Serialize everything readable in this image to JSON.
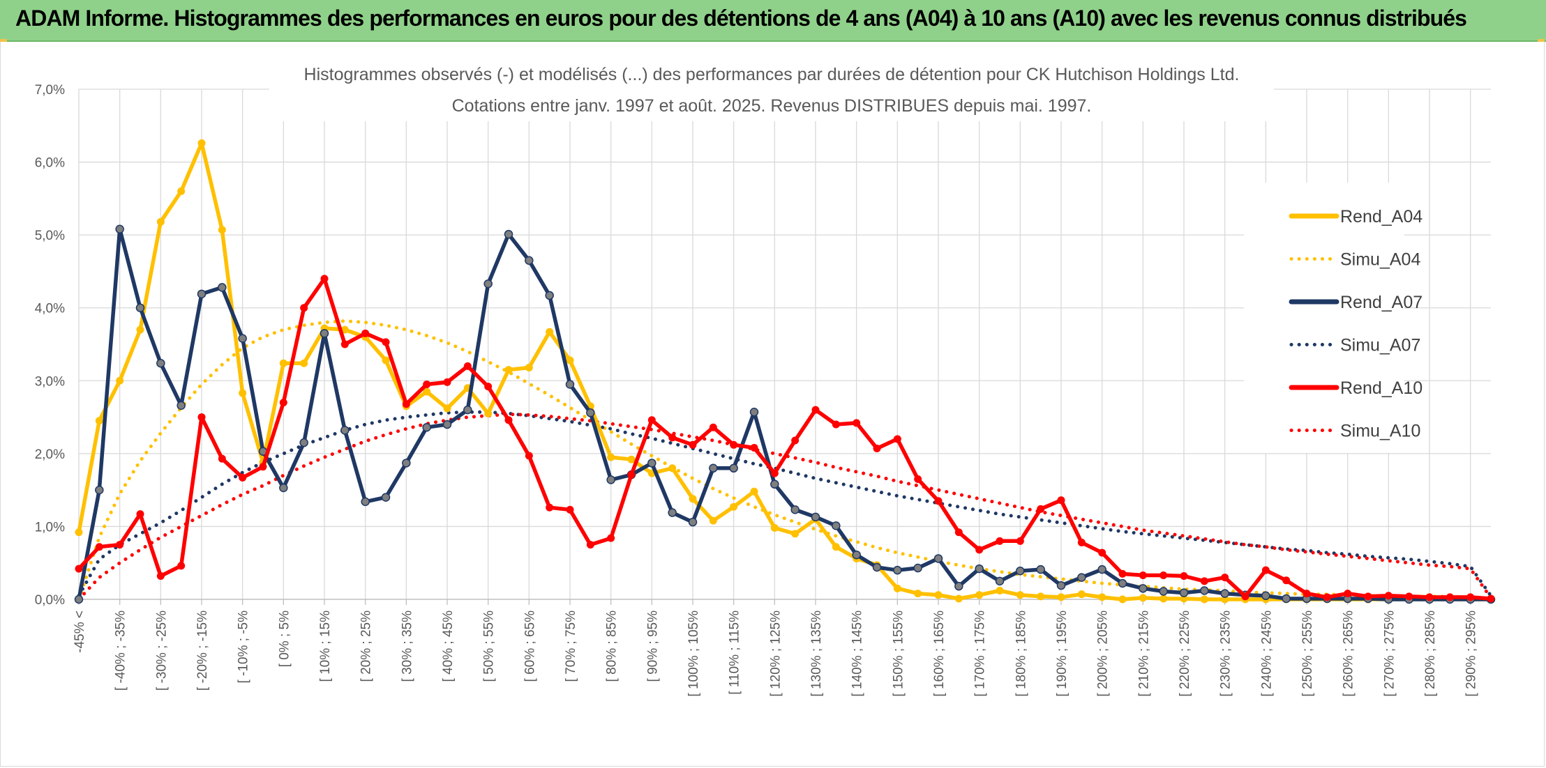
{
  "banner": {
    "title": "ADAM Informe. Histogrammes des performances en euros pour des détentions de 4 ans (A04) à 10 ans (A10) avec les revenus connus distribués"
  },
  "chart_data": {
    "type": "line",
    "title": "Histogrammes observés (-) et modélisés (...) des performances par durées de détention pour CK Hutchison Holdings Ltd.",
    "subtitle": "Cotations entre janv. 1997 et août. 2025. Revenus DISTRIBUES depuis mai. 1997.",
    "xlabel": "",
    "ylabel": "",
    "ylim": [
      0,
      7
    ],
    "yticks": [
      0,
      1,
      2,
      3,
      4,
      5,
      6,
      7
    ],
    "ytick_labels": [
      "0,0%",
      "1,0%",
      "2,0%",
      "3,0%",
      "4,0%",
      "5,0%",
      "6,0%",
      "7,0%"
    ],
    "grid": true,
    "legend_position": "right",
    "x_tick_labels": [
      "-45% <",
      "[ -40% ; -35%",
      "[ -30% ; -25%",
      "[ -20% ; -15%",
      "[ -10% ; -5%",
      "[ 0% ; 5%",
      "[ 10% ; 15%",
      "[ 20% ; 25%",
      "[ 30% ; 35%",
      "[ 40% ; 45%",
      "[ 50% ; 55%",
      "[ 60% ; 65%",
      "[ 70% ; 75%",
      "[ 80% ; 85%",
      "[ 90% ; 95%",
      "[ 100% ; 105%",
      "[ 110% ; 115%",
      "[ 120% ; 125%",
      "[ 130% ; 135%",
      "[ 140% ; 145%",
      "[ 150% ; 155%",
      "[ 160% ; 165%",
      "[ 170% ; 175%",
      "[ 180% ; 185%",
      "[ 190% ; 195%",
      "[ 200% ; 205%",
      "[ 210% ; 215%",
      "[ 220% ; 225%",
      "[ 230% ; 235%",
      "[ 240% ; 245%",
      "[ 250% ; 255%",
      "[ 260% ; 265%",
      "[ 270% ; 275%",
      "[ 280% ; 285%",
      "[ 290% ; 295%"
    ],
    "n_points": 70,
    "series": [
      {
        "name": "Rend_A04",
        "style": "solid",
        "color": "#ffc000",
        "values": [
          0.92,
          2.45,
          3.0,
          3.7,
          5.18,
          5.6,
          6.26,
          5.07,
          2.83,
          1.88,
          3.24,
          3.24,
          3.72,
          3.7,
          3.6,
          3.28,
          2.65,
          2.85,
          2.62,
          2.9,
          2.55,
          3.15,
          3.18,
          3.67,
          3.28,
          2.65,
          1.95,
          1.92,
          1.73,
          1.8,
          1.38,
          1.08,
          1.27,
          1.48,
          0.98,
          0.9,
          1.1,
          0.72,
          0.56,
          0.47,
          0.15,
          0.08,
          0.06,
          0.01,
          0.06,
          0.12,
          0.06,
          0.04,
          0.03,
          0.07,
          0.03,
          0.0,
          0.02,
          0.01,
          0.01,
          0.0,
          0.0,
          0.0,
          0.0,
          0.0,
          0.0,
          0.0,
          0.0,
          0.0,
          0.0,
          0.0,
          0.0,
          0.0,
          0.0,
          0.0
        ]
      },
      {
        "name": "Simu_A04",
        "style": "dotted",
        "color": "#ffc000",
        "values": [
          0.0,
          0.85,
          1.45,
          1.9,
          2.28,
          2.63,
          2.95,
          3.22,
          3.45,
          3.6,
          3.7,
          3.76,
          3.8,
          3.82,
          3.8,
          3.76,
          3.7,
          3.62,
          3.52,
          3.4,
          3.26,
          3.12,
          2.96,
          2.8,
          2.63,
          2.46,
          2.3,
          2.13,
          1.97,
          1.81,
          1.66,
          1.52,
          1.39,
          1.27,
          1.16,
          1.06,
          0.96,
          0.87,
          0.79,
          0.71,
          0.64,
          0.58,
          0.52,
          0.47,
          0.42,
          0.38,
          0.34,
          0.31,
          0.28,
          0.25,
          0.22,
          0.2,
          0.18,
          0.16,
          0.14,
          0.13,
          0.12,
          0.1,
          0.09,
          0.08,
          0.07,
          0.07,
          0.06,
          0.05,
          0.05,
          0.04,
          0.04,
          0.04,
          0.03,
          0.0
        ]
      },
      {
        "name": "Rend_A07",
        "style": "solid",
        "color": "#1f3864",
        "values": [
          0.0,
          1.5,
          5.08,
          4.0,
          3.24,
          2.66,
          4.19,
          4.28,
          3.58,
          2.03,
          1.53,
          2.15,
          3.65,
          2.32,
          1.34,
          1.4,
          1.87,
          2.36,
          2.4,
          2.6,
          4.33,
          5.01,
          4.65,
          4.17,
          2.95,
          2.56,
          1.64,
          1.71,
          1.87,
          1.19,
          1.06,
          1.8,
          1.8,
          2.57,
          1.58,
          1.23,
          1.13,
          1.01,
          0.61,
          0.44,
          0.4,
          0.43,
          0.56,
          0.18,
          0.42,
          0.25,
          0.39,
          0.41,
          0.19,
          0.3,
          0.41,
          0.22,
          0.15,
          0.11,
          0.09,
          0.12,
          0.08,
          0.06,
          0.05,
          0.01,
          0.01,
          0.01,
          0.01,
          0.01,
          0.0,
          0.0,
          0.0,
          0.0,
          0.0,
          0.0
        ]
      },
      {
        "name": "Simu_A07",
        "style": "dotted",
        "color": "#1f3864",
        "values": [
          0.05,
          0.55,
          0.75,
          0.9,
          1.05,
          1.22,
          1.4,
          1.58,
          1.74,
          1.88,
          2.0,
          2.12,
          2.22,
          2.32,
          2.4,
          2.46,
          2.5,
          2.53,
          2.56,
          2.57,
          2.57,
          2.55,
          2.52,
          2.48,
          2.44,
          2.39,
          2.34,
          2.27,
          2.21,
          2.14,
          2.07,
          2.0,
          1.93,
          1.86,
          1.8,
          1.73,
          1.66,
          1.6,
          1.54,
          1.48,
          1.42,
          1.37,
          1.32,
          1.27,
          1.22,
          1.17,
          1.13,
          1.09,
          1.05,
          1.01,
          0.97,
          0.93,
          0.9,
          0.87,
          0.84,
          0.81,
          0.78,
          0.75,
          0.72,
          0.69,
          0.67,
          0.64,
          0.62,
          0.59,
          0.57,
          0.55,
          0.52,
          0.49,
          0.45,
          0.05
        ]
      },
      {
        "name": "Rend_A10",
        "style": "solid",
        "color": "#ff0000",
        "values": [
          0.42,
          0.72,
          0.75,
          1.17,
          0.32,
          0.46,
          2.5,
          1.93,
          1.67,
          1.82,
          2.7,
          4.0,
          4.4,
          3.5,
          3.65,
          3.53,
          2.68,
          2.95,
          2.98,
          3.2,
          2.92,
          2.46,
          1.97,
          1.26,
          1.23,
          0.75,
          0.84,
          1.71,
          2.46,
          2.22,
          2.12,
          2.36,
          2.12,
          2.08,
          1.73,
          2.18,
          2.6,
          2.4,
          2.42,
          2.07,
          2.2,
          1.65,
          1.35,
          0.92,
          0.68,
          0.8,
          0.8,
          1.24,
          1.36,
          0.78,
          0.64,
          0.35,
          0.33,
          0.33,
          0.32,
          0.25,
          0.3,
          0.04,
          0.4,
          0.26,
          0.08,
          0.03,
          0.08,
          0.04,
          0.05,
          0.04,
          0.03,
          0.03,
          0.03,
          0.01
        ]
      },
      {
        "name": "Simu_A10",
        "style": "dotted",
        "color": "#ff0000",
        "values": [
          0.0,
          0.3,
          0.5,
          0.68,
          0.85,
          1.0,
          1.15,
          1.3,
          1.44,
          1.56,
          1.7,
          1.83,
          1.95,
          2.06,
          2.17,
          2.26,
          2.34,
          2.41,
          2.46,
          2.5,
          2.52,
          2.54,
          2.53,
          2.51,
          2.48,
          2.45,
          2.41,
          2.37,
          2.33,
          2.28,
          2.23,
          2.18,
          2.12,
          2.06,
          2.0,
          1.94,
          1.88,
          1.81,
          1.75,
          1.69,
          1.62,
          1.56,
          1.5,
          1.44,
          1.38,
          1.32,
          1.26,
          1.2,
          1.15,
          1.1,
          1.05,
          1.0,
          0.95,
          0.91,
          0.87,
          0.83,
          0.79,
          0.75,
          0.72,
          0.68,
          0.65,
          0.62,
          0.59,
          0.56,
          0.53,
          0.5,
          0.47,
          0.45,
          0.42,
          0.02
        ]
      }
    ]
  }
}
